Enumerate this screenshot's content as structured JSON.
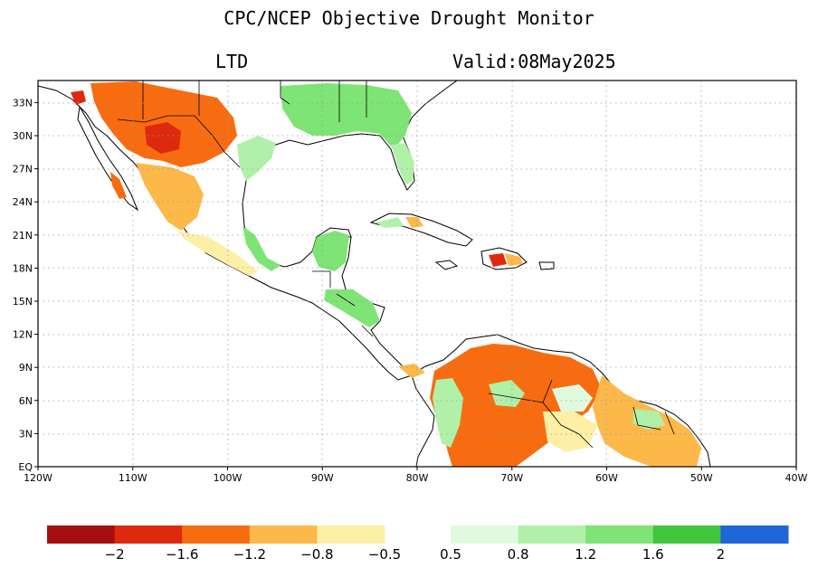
{
  "title": "CPC/NCEP Objective Drought Monitor",
  "index_label": "LTD",
  "valid_label": "Valid:08May2025",
  "lat_ticks": [
    "33N",
    "30N",
    "27N",
    "24N",
    "21N",
    "18N",
    "15N",
    "12N",
    "9N",
    "6N",
    "3N",
    "EQ"
  ],
  "lon_ticks": [
    "120W",
    "110W",
    "100W",
    "90W",
    "80W",
    "70W",
    "60W",
    "50W",
    "40W"
  ],
  "lon_range": [
    -120,
    -40
  ],
  "lat_range": [
    0,
    35
  ],
  "colorbar": {
    "dry_colors": [
      "#a50f0f",
      "#dd2a0f",
      "#f76c10",
      "#fdb84a",
      "#fdf0a6"
    ],
    "wet_colors": [
      "#e0fae0",
      "#b1f0a9",
      "#7ee475",
      "#3fc63a",
      "#1f66d9"
    ],
    "dry_labels": [
      "−2",
      "−1.6",
      "−1.2",
      "−0.8",
      "−0.5"
    ],
    "wet_labels": [
      "0.5",
      "0.8",
      "1.2",
      "1.6",
      "2"
    ]
  },
  "land_color": "#ffffff",
  "water_color": "#ffffff"
}
